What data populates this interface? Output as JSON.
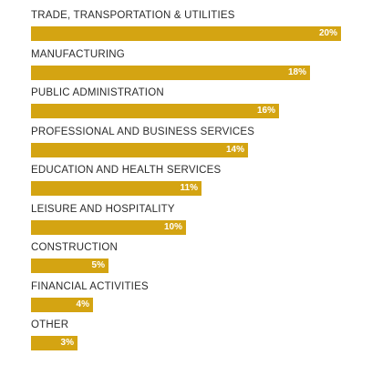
{
  "chart_data": {
    "type": "bar",
    "orientation": "horizontal",
    "bar_color": "#d4a412",
    "categories": [
      "TRADE, TRANSPORTATION & UTILITIES",
      "MANUFACTURING",
      "PUBLIC ADMINISTRATION",
      "PROFESSIONAL AND BUSINESS SERVICES",
      "EDUCATION AND HEALTH SERVICES",
      "LEISURE AND HOSPITALITY",
      "CONSTRUCTION",
      "FINANCIAL ACTIVITIES",
      "OTHER"
    ],
    "values": [
      20,
      18,
      16,
      14,
      11,
      10,
      5,
      4,
      3
    ],
    "value_labels": [
      "20%",
      "18%",
      "16%",
      "14%",
      "11%",
      "10%",
      "5%",
      "4%",
      "3%"
    ],
    "unit": "%",
    "xlim": [
      0,
      20
    ],
    "grid": false
  }
}
